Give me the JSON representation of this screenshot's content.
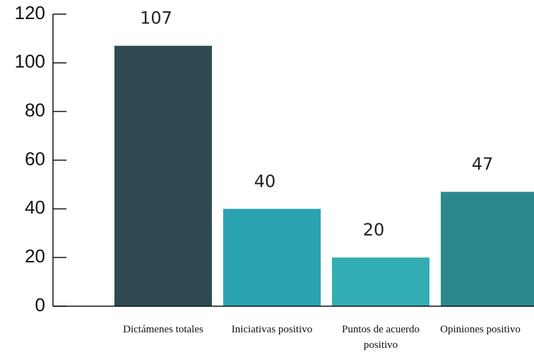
{
  "chart_data": {
    "type": "bar",
    "categories": [
      "Dictámenes totales",
      "Iniciativas positivo",
      "Puntos de acuerdo positivo",
      "Opiniones positivo"
    ],
    "values": [
      107,
      40,
      20,
      47
    ],
    "colors": [
      "#2e4a50",
      "#2aa2b0",
      "#33adb4",
      "#2b898e"
    ],
    "ylim": [
      0,
      120
    ],
    "yticks": [
      0,
      20,
      40,
      60,
      80,
      100,
      120
    ]
  }
}
